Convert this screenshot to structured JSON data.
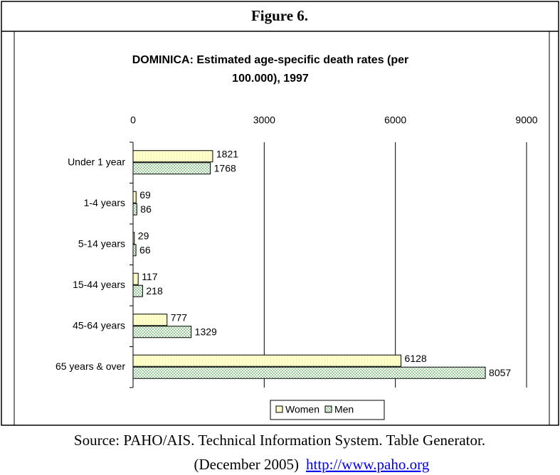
{
  "figure_label": "Figure 6.",
  "source": {
    "line1": "Source: PAHO/AIS. Technical Information System. Table Generator.",
    "line2": "(December 2005)",
    "link": "http://www.paho.org"
  },
  "chart_data": {
    "type": "bar",
    "orientation": "horizontal",
    "title": "DOMINICA: Estimated age-specific death rates (per 100.000), 1997",
    "categories": [
      "Under 1 year",
      "1-4 years",
      "5-14 years",
      "15-44 years",
      "45-64 years",
      "65 years & over"
    ],
    "series": [
      {
        "name": "Women",
        "color": "#ffffcc",
        "values": [
          1821,
          69,
          29,
          117,
          777,
          6128
        ]
      },
      {
        "name": "Men",
        "color": "#99cc99",
        "values": [
          1768,
          86,
          66,
          218,
          1329,
          8057
        ]
      }
    ],
    "xlim": [
      0,
      9000
    ],
    "xticks": [
      0,
      3000,
      6000,
      9000
    ],
    "grid": true,
    "legend": "bottom"
  }
}
